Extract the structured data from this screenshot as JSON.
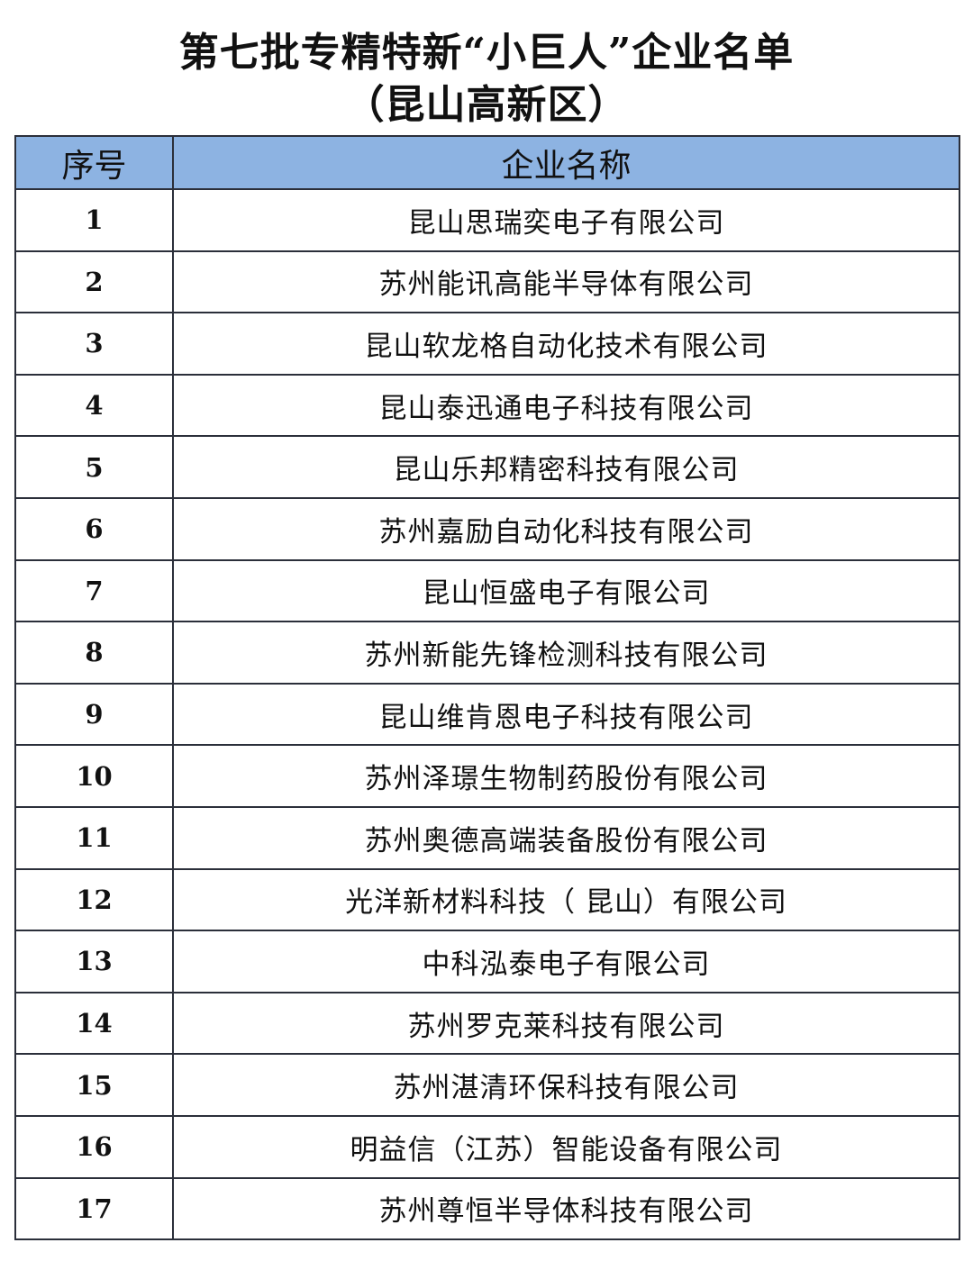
{
  "title": "第七批专精特新“小巨人”企业名单",
  "subtitle": "（昆山高新区）",
  "table": {
    "headers": [
      "序号",
      "企业名称"
    ],
    "rows": [
      {
        "no": "1",
        "name": "昆山思瑞奕电子有限公司"
      },
      {
        "no": "2",
        "name": "苏州能讯高能半导体有限公司"
      },
      {
        "no": "3",
        "name": "昆山软龙格自动化技术有限公司"
      },
      {
        "no": "4",
        "name": "昆山泰迅通电子科技有限公司"
      },
      {
        "no": "5",
        "name": "昆山乐邦精密科技有限公司"
      },
      {
        "no": "6",
        "name": "苏州嘉励自动化科技有限公司"
      },
      {
        "no": "7",
        "name": "昆山恒盛电子有限公司"
      },
      {
        "no": "8",
        "name": "苏州新能先锋检测科技有限公司"
      },
      {
        "no": "9",
        "name": "昆山维肯恩电子科技有限公司"
      },
      {
        "no": "10",
        "name": "苏州泽璟生物制药股份有限公司"
      },
      {
        "no": "11",
        "name": "苏州奥德高端装备股份有限公司"
      },
      {
        "no": "12",
        "name": "光洋新材料科技（ 昆山）有限公司"
      },
      {
        "no": "13",
        "name": "中科泓泰电子有限公司"
      },
      {
        "no": "14",
        "name": "苏州罗克莱科技有限公司"
      },
      {
        "no": "15",
        "name": "苏州湛清环保科技有限公司"
      },
      {
        "no": "16",
        "name": "明益信（江苏）智能设备有限公司"
      },
      {
        "no": "17",
        "name": "苏州尊恒半导体科技有限公司"
      }
    ]
  },
  "colors": {
    "header_bg": "#8db3e2",
    "border": "#2b2f3a"
  }
}
